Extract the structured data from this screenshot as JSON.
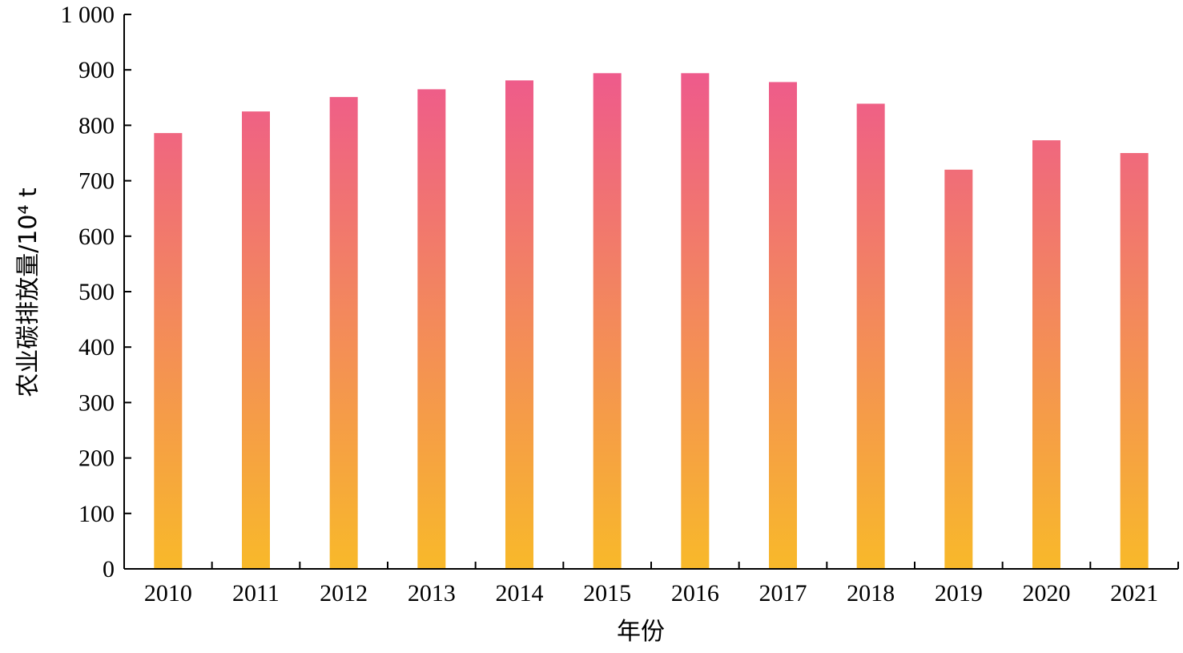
{
  "chart_data": {
    "type": "bar",
    "categories": [
      "2010",
      "2011",
      "2012",
      "2013",
      "2014",
      "2015",
      "2016",
      "2017",
      "2018",
      "2019",
      "2020",
      "2021"
    ],
    "values": [
      786,
      825,
      851,
      865,
      881,
      894,
      894,
      878,
      839,
      720,
      773,
      750
    ],
    "xlabel": "年份",
    "ylabel": "农业碳排放量/10⁴ t",
    "ylim": [
      0,
      1000
    ],
    "yticks": [
      0,
      100,
      200,
      300,
      400,
      500,
      600,
      700,
      800,
      900,
      1000
    ],
    "ytick_labels": [
      "0",
      "100",
      "200",
      "300",
      "400",
      "500",
      "600",
      "700",
      "800",
      "900",
      "1 000"
    ],
    "grid": false,
    "legend": "none",
    "colors": {
      "bar_top": "#ED4F97",
      "bar_bottom": "#F8B92A",
      "axis": "#000000"
    }
  }
}
